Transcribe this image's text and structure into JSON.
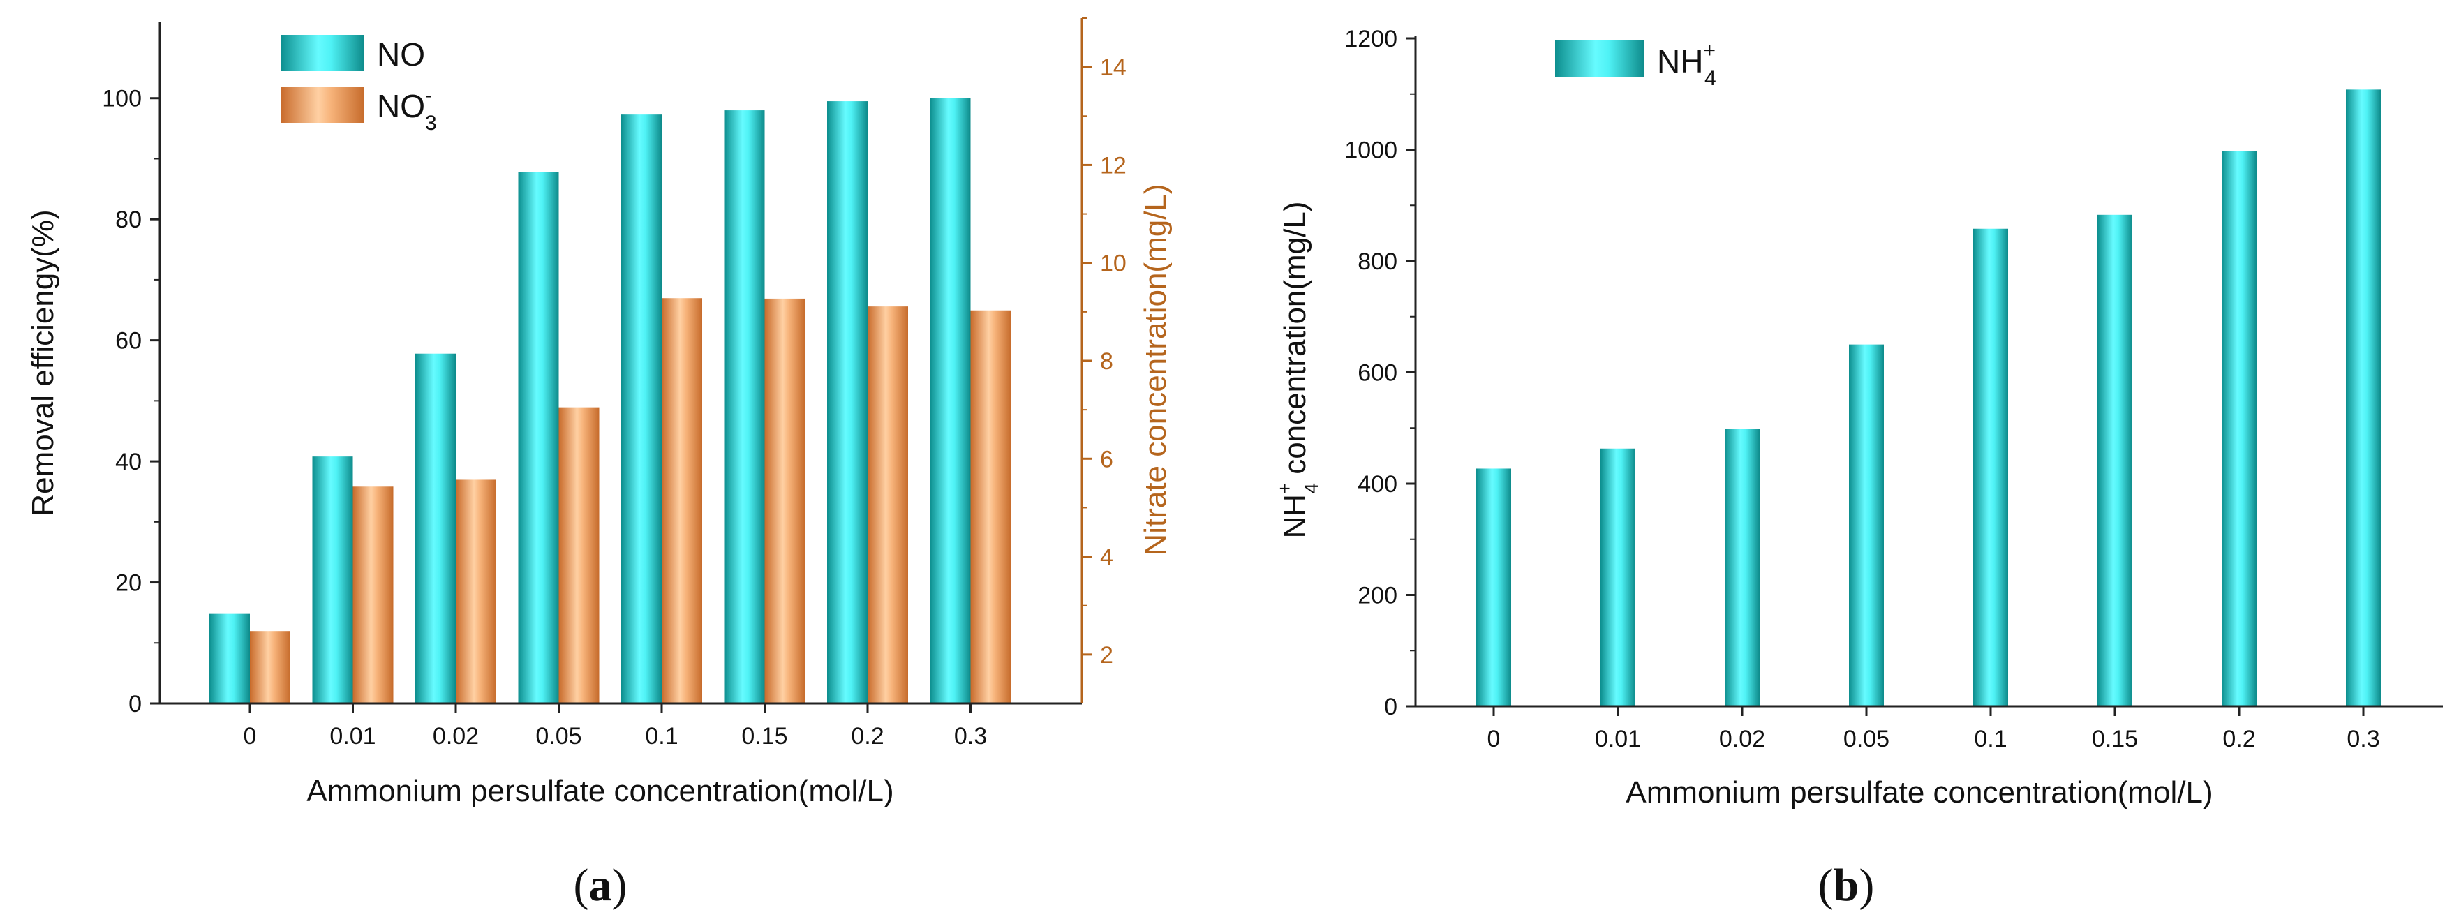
{
  "chart_data": [
    {
      "type": "bar",
      "panel_label": {
        "open": "(",
        "letter": "a",
        "close": ")"
      },
      "categories": [
        "0",
        "0.01",
        "0.02",
        "0.05",
        "0.1",
        "0.15",
        "0.2",
        "0.3"
      ],
      "xlabel": "Ammonium persulfate concentration(mol/L)",
      "ylabel": "Removal efficiengy(%)",
      "ylim": [
        0,
        110
      ],
      "yticks": [
        0,
        20,
        40,
        60,
        80,
        100
      ],
      "y2label": "Nitrate concentration(mg/L)",
      "y2lim": [
        1,
        15
      ],
      "y2ticks": [
        2,
        4,
        6,
        8,
        10,
        12,
        14
      ],
      "series": [
        {
          "name": "NO",
          "axis": "left",
          "color": "#1fc9c9",
          "values": [
            14.8,
            40.8,
            57.8,
            87.8,
            97.3,
            98.0,
            99.5,
            100.0
          ]
        },
        {
          "name": "NO",
          "name_sub": "3",
          "name_sup": "-",
          "axis": "right",
          "color": "#e8954f",
          "values": [
            2.48,
            5.43,
            5.57,
            7.05,
            9.28,
            9.27,
            9.11,
            9.03
          ]
        }
      ],
      "legend_position": "top-left"
    },
    {
      "type": "bar",
      "panel_label": {
        "open": "(",
        "letter": "b",
        "close": ")"
      },
      "categories": [
        "0",
        "0.01",
        "0.02",
        "0.05",
        "0.1",
        "0.15",
        "0.2",
        "0.3"
      ],
      "xlabel": "Ammonium persulfate concentration(mol/L)",
      "ylabel": {
        "pre": "NH",
        "sub": "4",
        "sup": "+",
        "post": " concentration(mg/L)"
      },
      "ylim": [
        0,
        1200
      ],
      "yticks": [
        0,
        200,
        400,
        600,
        800,
        1000,
        1200
      ],
      "series": [
        {
          "name": "NH",
          "name_sub": "4",
          "name_sup": "+",
          "color": "#1fc9c9",
          "values": [
            427,
            463,
            499,
            650,
            858,
            883,
            997,
            1108
          ]
        }
      ],
      "legend_position": "top-left"
    }
  ]
}
